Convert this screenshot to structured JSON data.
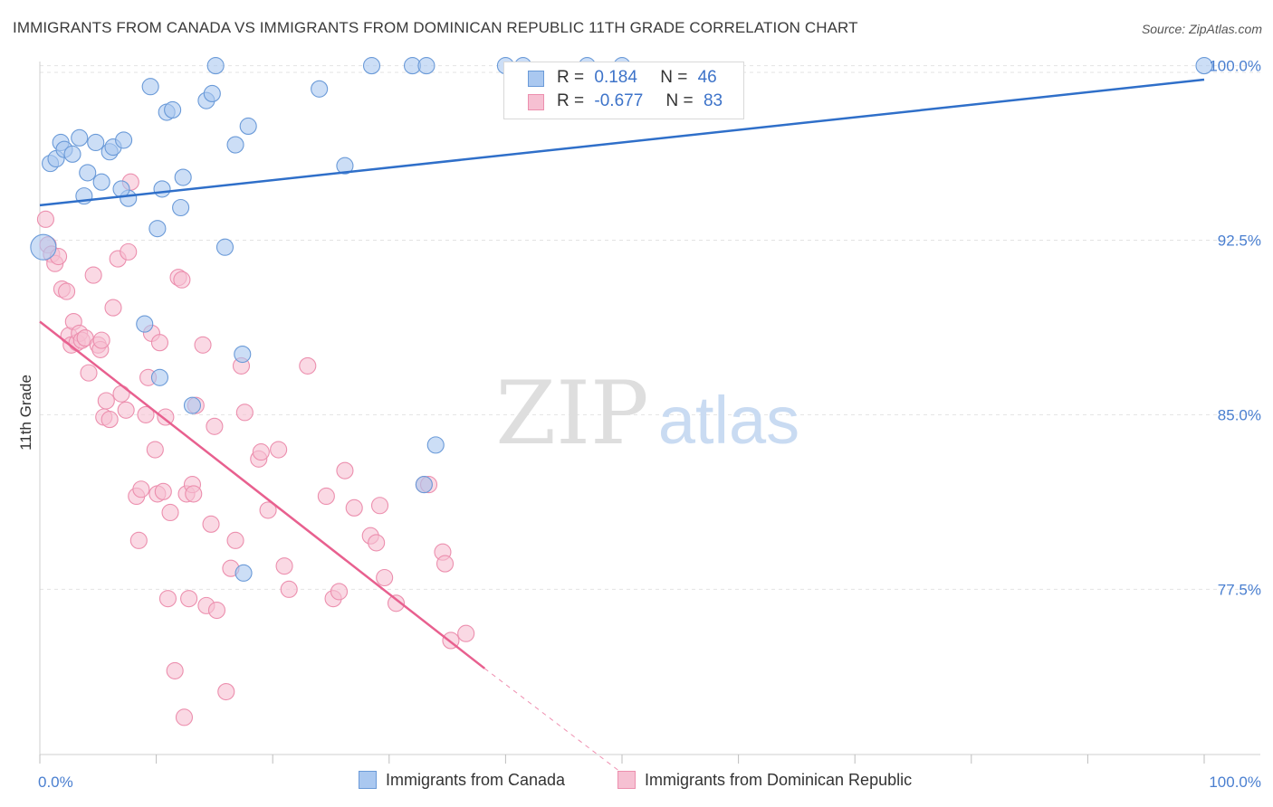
{
  "title": "IMMIGRANTS FROM CANADA VS IMMIGRANTS FROM DOMINICAN REPUBLIC 11TH GRADE CORRELATION CHART",
  "source": "Source: ZipAtlas.com",
  "watermark": {
    "zip": "ZIP",
    "atlas": "atlas"
  },
  "colors": {
    "canada_fill": "#aac8f0",
    "canada_stroke": "#6a9ad8",
    "canada_line": "#2f6fc9",
    "dominican_fill": "#f6c0d2",
    "dominican_stroke": "#ec8fae",
    "dominican_line": "#e8608f",
    "tick_label": "#4a7fd0",
    "grid": "#e3e3e3"
  },
  "legend": {
    "rows": [
      {
        "r_label": "R =",
        "r_value": "0.184",
        "n_label": "N =",
        "n_value": "46"
      },
      {
        "r_label": "R =",
        "r_value": "-0.677",
        "n_label": "N =",
        "n_value": "83"
      }
    ]
  },
  "bottom_legend": {
    "canada": "Immigrants from Canada",
    "dominican": "Immigrants from Dominican Republic"
  },
  "chart_data": {
    "type": "scatter",
    "title": "IMMIGRANTS FROM CANADA VS IMMIGRANTS FROM DOMINICAN REPUBLIC 11TH GRADE CORRELATION CHART",
    "xlabel": "",
    "ylabel": "11th Grade",
    "xlim": [
      0,
      100
    ],
    "ylim": [
      70.4,
      100.8
    ],
    "x_tick_labels": [
      "0.0%",
      "100.0%"
    ],
    "y_ticks": [
      77.5,
      85.0,
      92.5,
      100.0
    ],
    "y_tick_labels": [
      "77.5%",
      "85.0%",
      "92.5%",
      "100.0%"
    ],
    "grid": "horizontal dashed",
    "legend_placement": "top-center",
    "series": [
      {
        "name": "Immigrants from Canada",
        "r": 0.184,
        "n": 46,
        "trend": {
          "x": [
            0,
            100
          ],
          "y": [
            94.0,
            99.4
          ]
        },
        "points": [
          [
            0.3,
            92.2
          ],
          [
            0.9,
            95.8
          ],
          [
            1.4,
            96.0
          ],
          [
            1.8,
            96.7
          ],
          [
            2.1,
            96.4
          ],
          [
            2.8,
            96.2
          ],
          [
            3.4,
            96.9
          ],
          [
            3.8,
            94.4
          ],
          [
            4.1,
            95.4
          ],
          [
            4.8,
            96.7
          ],
          [
            5.3,
            95.0
          ],
          [
            6.0,
            96.3
          ],
          [
            6.3,
            96.5
          ],
          [
            7.2,
            96.8
          ],
          [
            7.6,
            94.3
          ],
          [
            7.0,
            94.7
          ],
          [
            9.0,
            88.9
          ],
          [
            9.5,
            99.1
          ],
          [
            10.1,
            93.0
          ],
          [
            10.3,
            86.6
          ],
          [
            10.5,
            94.7
          ],
          [
            10.9,
            98.0
          ],
          [
            11.4,
            98.1
          ],
          [
            12.1,
            93.9
          ],
          [
            12.3,
            95.2
          ],
          [
            13.1,
            85.4
          ],
          [
            14.3,
            98.5
          ],
          [
            14.8,
            98.8
          ],
          [
            15.1,
            100.0
          ],
          [
            15.9,
            92.2
          ],
          [
            16.8,
            96.6
          ],
          [
            17.4,
            87.6
          ],
          [
            17.5,
            78.2
          ],
          [
            17.9,
            97.4
          ],
          [
            24.0,
            99.0
          ],
          [
            26.2,
            95.7
          ],
          [
            28.5,
            100.0
          ],
          [
            32.0,
            100.0
          ],
          [
            33.2,
            100.0
          ],
          [
            34.0,
            83.7
          ],
          [
            33.0,
            82.0
          ],
          [
            40.0,
            100.0
          ],
          [
            41.5,
            100.0
          ],
          [
            47.0,
            100.0
          ],
          [
            50.0,
            100.0
          ],
          [
            100.0,
            100.0
          ]
        ]
      },
      {
        "name": "Immigrants from Dominican Republic",
        "r": -0.677,
        "n": 83,
        "trend": {
          "x": [
            0,
            38.2
          ],
          "y": [
            89.0,
            74.1
          ],
          "dashed_to": {
            "x": 50,
            "y": 69.6
          }
        },
        "points": [
          [
            0.5,
            93.4
          ],
          [
            0.7,
            92.3
          ],
          [
            1.0,
            91.9
          ],
          [
            1.3,
            91.5
          ],
          [
            1.6,
            91.8
          ],
          [
            1.9,
            90.4
          ],
          [
            2.3,
            90.3
          ],
          [
            2.5,
            88.4
          ],
          [
            2.7,
            88.0
          ],
          [
            2.9,
            89.0
          ],
          [
            3.2,
            88.1
          ],
          [
            3.4,
            88.5
          ],
          [
            3.6,
            88.2
          ],
          [
            3.9,
            88.3
          ],
          [
            4.2,
            86.8
          ],
          [
            4.6,
            91.0
          ],
          [
            5.0,
            88.0
          ],
          [
            5.2,
            87.8
          ],
          [
            5.3,
            88.2
          ],
          [
            5.5,
            84.9
          ],
          [
            5.7,
            85.6
          ],
          [
            6.0,
            84.8
          ],
          [
            6.3,
            89.6
          ],
          [
            6.7,
            91.7
          ],
          [
            7.0,
            85.9
          ],
          [
            7.4,
            85.2
          ],
          [
            7.6,
            92.0
          ],
          [
            7.8,
            95.0
          ],
          [
            8.3,
            81.5
          ],
          [
            8.5,
            79.6
          ],
          [
            8.7,
            81.8
          ],
          [
            9.1,
            85.0
          ],
          [
            9.3,
            86.6
          ],
          [
            9.6,
            88.5
          ],
          [
            9.9,
            83.5
          ],
          [
            10.1,
            81.6
          ],
          [
            10.3,
            88.1
          ],
          [
            10.6,
            81.7
          ],
          [
            10.8,
            84.9
          ],
          [
            11.0,
            77.1
          ],
          [
            11.2,
            80.8
          ],
          [
            11.6,
            74.0
          ],
          [
            11.9,
            90.9
          ],
          [
            12.2,
            90.8
          ],
          [
            12.4,
            72.0
          ],
          [
            12.6,
            81.6
          ],
          [
            12.8,
            77.1
          ],
          [
            13.1,
            82.0
          ],
          [
            13.2,
            81.6
          ],
          [
            13.4,
            85.4
          ],
          [
            14.0,
            88.0
          ],
          [
            14.3,
            76.8
          ],
          [
            14.7,
            80.3
          ],
          [
            15.0,
            84.5
          ],
          [
            15.2,
            76.6
          ],
          [
            16.0,
            73.1
          ],
          [
            16.4,
            78.4
          ],
          [
            16.8,
            79.6
          ],
          [
            17.3,
            87.1
          ],
          [
            17.6,
            85.1
          ],
          [
            18.8,
            83.1
          ],
          [
            19.0,
            83.4
          ],
          [
            19.6,
            80.9
          ],
          [
            20.5,
            83.5
          ],
          [
            21.0,
            78.5
          ],
          [
            21.4,
            77.5
          ],
          [
            23.0,
            87.1
          ],
          [
            24.6,
            81.5
          ],
          [
            25.2,
            77.1
          ],
          [
            25.7,
            77.4
          ],
          [
            26.2,
            82.6
          ],
          [
            27.0,
            81.0
          ],
          [
            28.4,
            79.8
          ],
          [
            28.9,
            79.5
          ],
          [
            29.2,
            81.1
          ],
          [
            29.6,
            78.0
          ],
          [
            30.6,
            76.9
          ],
          [
            33.0,
            82.0
          ],
          [
            33.4,
            82.0
          ],
          [
            34.6,
            79.1
          ],
          [
            34.8,
            78.6
          ],
          [
            35.3,
            75.3
          ],
          [
            36.6,
            75.6
          ]
        ]
      }
    ]
  }
}
